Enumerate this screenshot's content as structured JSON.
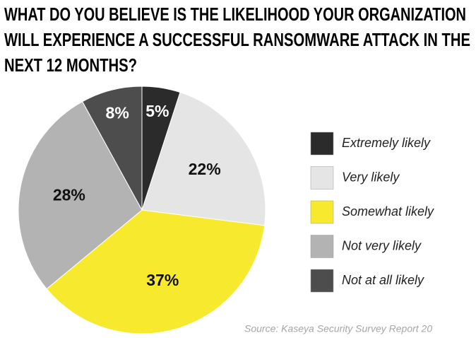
{
  "chart_data": {
    "type": "pie",
    "title": [
      "WHAT DO YOU BELIEVE IS THE LIKELIHOOD YOUR ORGANIZATION",
      "WILL EXPERIENCE A SUCCESSFUL RANSOMWARE ATTACK IN THE",
      "NEXT 12 MONTHS?"
    ],
    "categories": [
      "Extremely likely",
      "Very likely",
      "Somewhat likely",
      "Not very likely",
      "Not at all likely"
    ],
    "values": [
      5,
      22,
      37,
      28,
      8
    ],
    "value_labels": [
      "5%",
      "22%",
      "37%",
      "28%",
      "8%"
    ],
    "colors": [
      "#2b2b2b",
      "#e5e5e5",
      "#f7ea2e",
      "#b3b3b3",
      "#4d4d4d"
    ],
    "legend": "right",
    "source": "Source: Kaseya Security Survey Report 20"
  }
}
